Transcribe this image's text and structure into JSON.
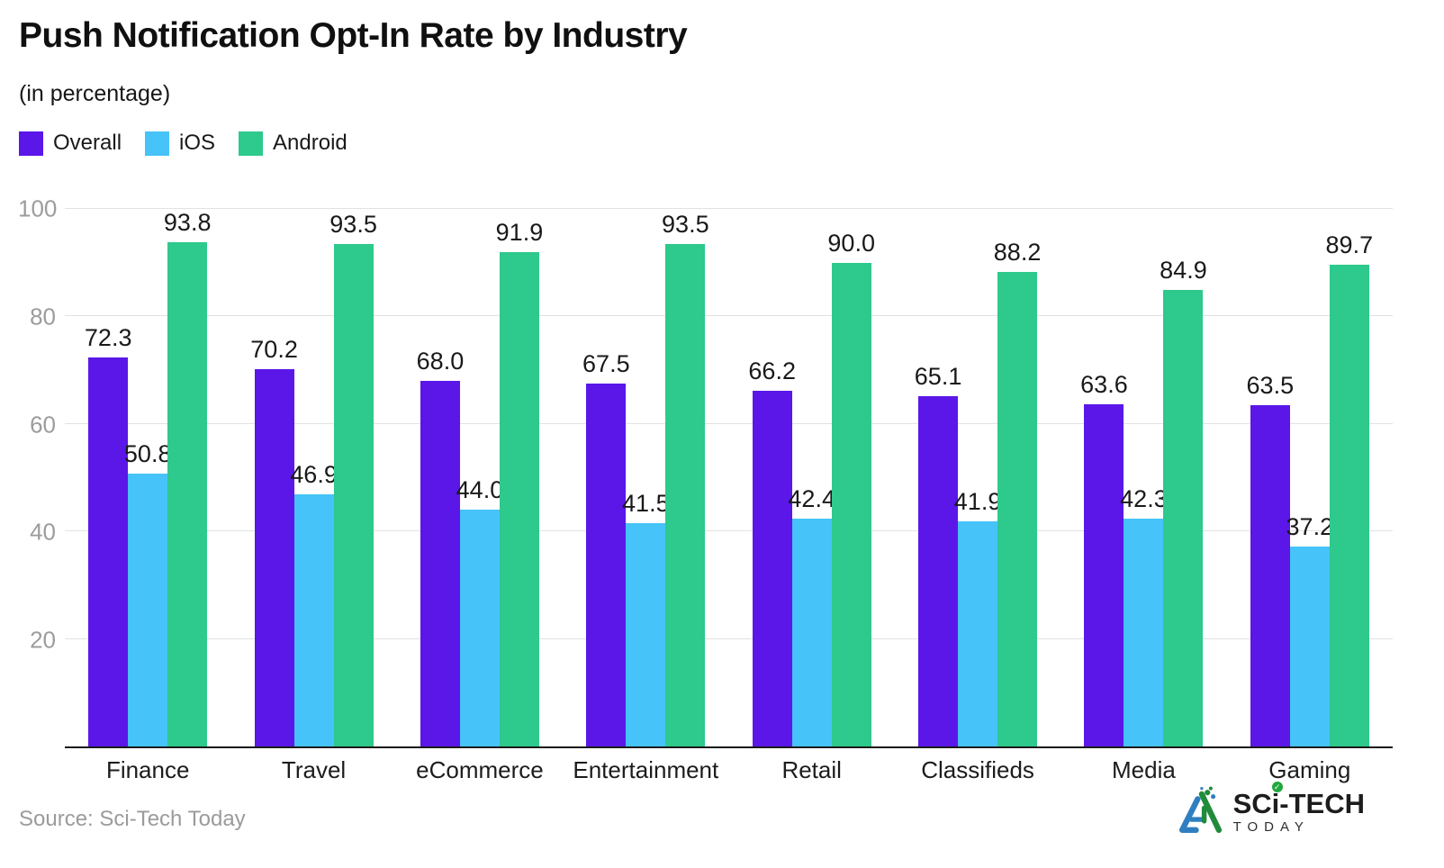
{
  "header": {
    "title": "Push Notification Opt-In Rate by Industry",
    "subtitle": "(in percentage)"
  },
  "chart_data": {
    "type": "bar",
    "categories": [
      "Finance",
      "Travel",
      "eCommerce",
      "Entertainment",
      "Retail",
      "Classifieds",
      "Media",
      "Gaming"
    ],
    "series": [
      {
        "name": "Overall",
        "color": "#5a17e8",
        "values": [
          72.3,
          70.2,
          68.0,
          67.5,
          66.2,
          65.1,
          63.6,
          63.5
        ]
      },
      {
        "name": "iOS",
        "color": "#46c3f8",
        "values": [
          50.8,
          46.9,
          44.0,
          41.5,
          42.4,
          41.9,
          42.3,
          37.2
        ]
      },
      {
        "name": "Android",
        "color": "#2ec98c",
        "values": [
          93.8,
          93.5,
          91.9,
          93.5,
          90.0,
          88.2,
          84.9,
          89.7
        ]
      }
    ],
    "ylim": [
      0,
      100
    ],
    "yticks": [
      20,
      40,
      60,
      80,
      100
    ],
    "grid": true,
    "legend_position": "top-left",
    "value_label_decimals": 1
  },
  "footer": {
    "source": "Source: Sci-Tech Today",
    "logo": {
      "part1": "SC",
      "part2": "i",
      "part3": "-TECH",
      "sub": "TODAY",
      "check_glyph": "✓",
      "mark_blue": "#2f7fc0",
      "mark_green": "#1f8b3b"
    }
  }
}
